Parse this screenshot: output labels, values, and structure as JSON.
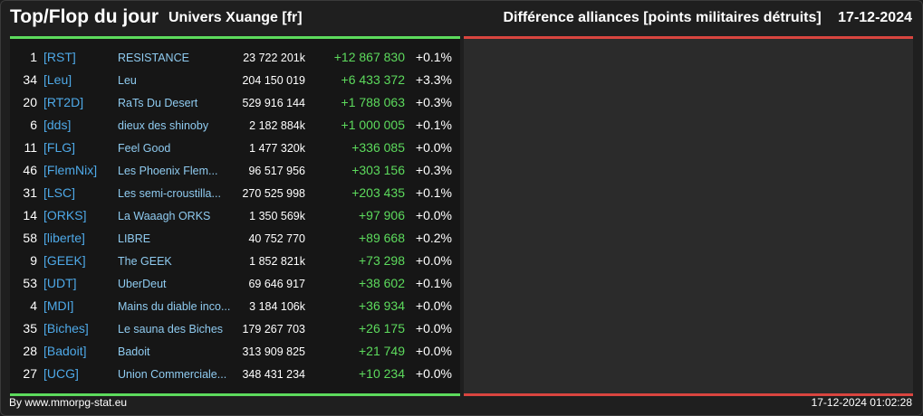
{
  "header": {
    "title": "Top/Flop du jour",
    "universe": "Univers Xuange [fr]",
    "right_title": "Différence alliances [points militaires détruits]",
    "date": "17-12-2024"
  },
  "colors": {
    "positive": "#5ddb5d",
    "negative": "#d9453f",
    "tag": "#4ea9e8",
    "name": "#8fcbf0"
  },
  "top_rows": [
    {
      "rank": "1",
      "tag": "[RST]",
      "name": "RESISTANCE",
      "points": "23 722 201k",
      "diff": "+12 867 830",
      "pct": "+0.1%"
    },
    {
      "rank": "34",
      "tag": "[Leu]",
      "name": "Leu",
      "points": "204 150 019",
      "diff": "+6 433 372",
      "pct": "+3.3%"
    },
    {
      "rank": "20",
      "tag": "[RT2D]",
      "name": "RaTs Du Desert",
      "points": "529 916 144",
      "diff": "+1 788 063",
      "pct": "+0.3%"
    },
    {
      "rank": "6",
      "tag": "[dds]",
      "name": "dieux des shinoby",
      "points": "2 182 884k",
      "diff": "+1 000 005",
      "pct": "+0.1%"
    },
    {
      "rank": "11",
      "tag": "[FLG]",
      "name": "Feel Good",
      "points": "1 477 320k",
      "diff": "+336 085",
      "pct": "+0.0%"
    },
    {
      "rank": "46",
      "tag": "[FlemNix]",
      "name": "Les Phoenix Flem...",
      "points": "96 517 956",
      "diff": "+303 156",
      "pct": "+0.3%"
    },
    {
      "rank": "31",
      "tag": "[LSC]",
      "name": "Les semi-croustilla...",
      "points": "270 525 998",
      "diff": "+203 435",
      "pct": "+0.1%"
    },
    {
      "rank": "14",
      "tag": "[ORKS]",
      "name": "La Waaagh ORKS",
      "points": "1 350 569k",
      "diff": "+97 906",
      "pct": "+0.0%"
    },
    {
      "rank": "58",
      "tag": "[liberte]",
      "name": "LIBRE",
      "points": "40 752 770",
      "diff": "+89 668",
      "pct": "+0.2%"
    },
    {
      "rank": "9",
      "tag": "[GEEK]",
      "name": "The GEEK",
      "points": "1 852 821k",
      "diff": "+73 298",
      "pct": "+0.0%"
    },
    {
      "rank": "53",
      "tag": "[UDT]",
      "name": "UberDeut",
      "points": "69 646 917",
      "diff": "+38 602",
      "pct": "+0.1%"
    },
    {
      "rank": "4",
      "tag": "[MDI]",
      "name": "Mains du diable inco...",
      "points": "3 184 106k",
      "diff": "+36 934",
      "pct": "+0.0%"
    },
    {
      "rank": "35",
      "tag": "[Biches]",
      "name": "Le sauna des Biches",
      "points": "179 267 703",
      "diff": "+26 175",
      "pct": "+0.0%"
    },
    {
      "rank": "28",
      "tag": "[Badoit]",
      "name": "Badoit",
      "points": "313 909 825",
      "diff": "+21 749",
      "pct": "+0.0%"
    },
    {
      "rank": "27",
      "tag": "[UCG]",
      "name": "Union Commerciale...",
      "points": "348 431 234",
      "diff": "+10 234",
      "pct": "+0.0%"
    }
  ],
  "flop_rows": [],
  "footer": {
    "credit": "By www.mmorpg-stat.eu",
    "timestamp": "17-12-2024 01:02:28"
  }
}
